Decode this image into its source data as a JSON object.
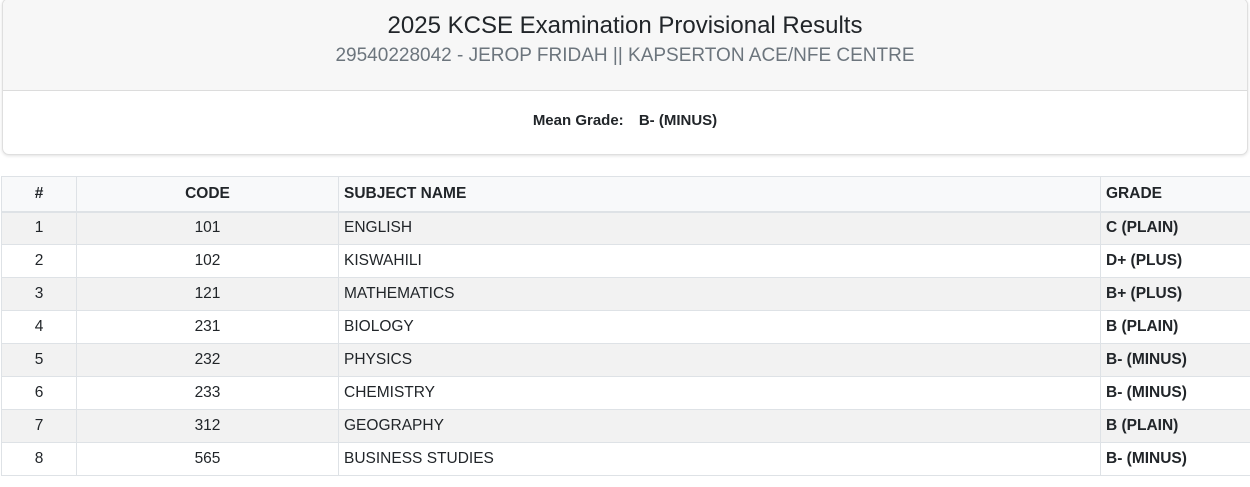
{
  "header": {
    "title": "2025 KCSE Examination Provisional Results",
    "subtitle": "29540228042 - JEROP FRIDAH || KAPSERTON ACE/NFE CENTRE"
  },
  "summary": {
    "mean_grade_label": "Mean Grade:",
    "mean_grade_value": "B- (MINUS)"
  },
  "table": {
    "columns": [
      "#",
      "CODE",
      "SUBJECT NAME",
      "GRADE"
    ],
    "rows": [
      {
        "num": "1",
        "code": "101",
        "name": "ENGLISH",
        "grade": "C (PLAIN)"
      },
      {
        "num": "2",
        "code": "102",
        "name": "KISWAHILI",
        "grade": "D+ (PLUS)"
      },
      {
        "num": "3",
        "code": "121",
        "name": "MATHEMATICS",
        "grade": "B+ (PLUS)"
      },
      {
        "num": "4",
        "code": "231",
        "name": "BIOLOGY",
        "grade": "B (PLAIN)"
      },
      {
        "num": "5",
        "code": "232",
        "name": "PHYSICS",
        "grade": "B- (MINUS)"
      },
      {
        "num": "6",
        "code": "233",
        "name": "CHEMISTRY",
        "grade": "B- (MINUS)"
      },
      {
        "num": "7",
        "code": "312",
        "name": "GEOGRAPHY",
        "grade": "B (PLAIN)"
      },
      {
        "num": "8",
        "code": "565",
        "name": "BUSINESS STUDIES",
        "grade": "B- (MINUS)"
      }
    ]
  }
}
